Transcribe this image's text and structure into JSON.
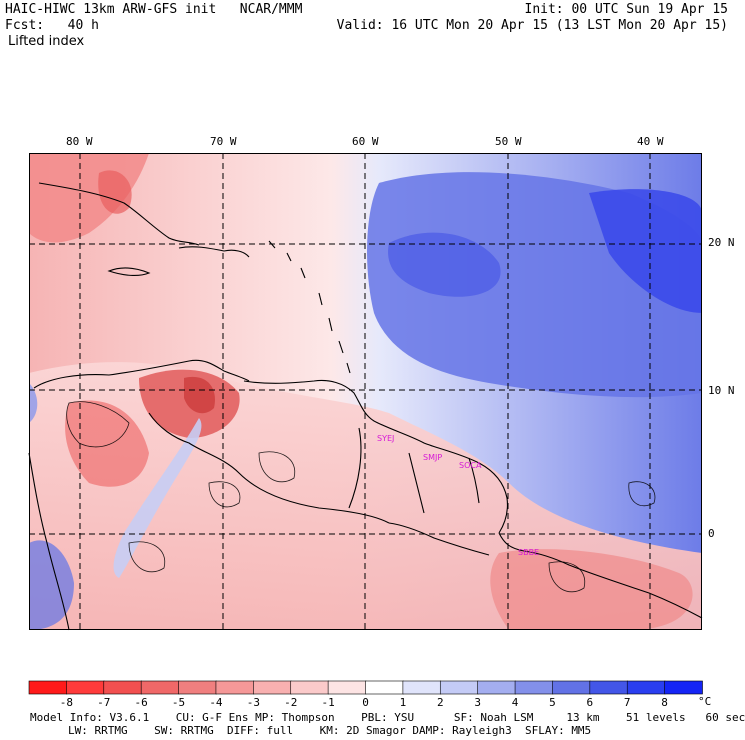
{
  "header": {
    "title": "HAIC-HIWC 13km ARW-GFS init   NCAR/MMM",
    "fcst": "Fcst:   40 h",
    "field": "Lifted index",
    "init": "Init: 00 UTC Sun 19 Apr 15",
    "valid": "Valid: 16 UTC Mon 20 Apr 15 (13 LST Mon 20 Apr 15)"
  },
  "axes": {
    "lon_labels": [
      "80 W",
      "70 W",
      "60 W",
      "50 W",
      "40 W"
    ],
    "lat_labels": [
      "20 N",
      "10 N",
      "0"
    ]
  },
  "stations": [
    "SYEJ",
    "SMJP",
    "SOCA",
    "SBBE"
  ],
  "colorbar": {
    "labels": [
      "-8",
      "-7",
      "-6",
      "-5",
      "-4",
      "-3",
      "-2",
      "-1",
      "0",
      "1",
      "2",
      "3",
      "4",
      "5",
      "6",
      "7",
      "8"
    ],
    "unit": "°C",
    "colors": [
      "#ff1a1a",
      "#ff3b3b",
      "#f25050",
      "#f06868",
      "#f07f7f",
      "#f59898",
      "#f8b0b0",
      "#fbcaca",
      "#fde4e4",
      "#ffffff",
      "#e0e4fb",
      "#c4cbf6",
      "#a4aef0",
      "#8390ea",
      "#6272e6",
      "#4356e8",
      "#2a3ef0",
      "#1424f5"
    ]
  },
  "footer": {
    "line1": "Model Info: V3.6.1    CU: G-F Ens MP: Thompson    PBL: YSU      SF: Noah LSM     13 km    51 levels   60 sec",
    "line2": "LW: RRTMG    SW: RRTMG  DIFF: full    KM: 2D Smagor DAMP: Rayleigh3  SFLAY: MM5"
  }
}
